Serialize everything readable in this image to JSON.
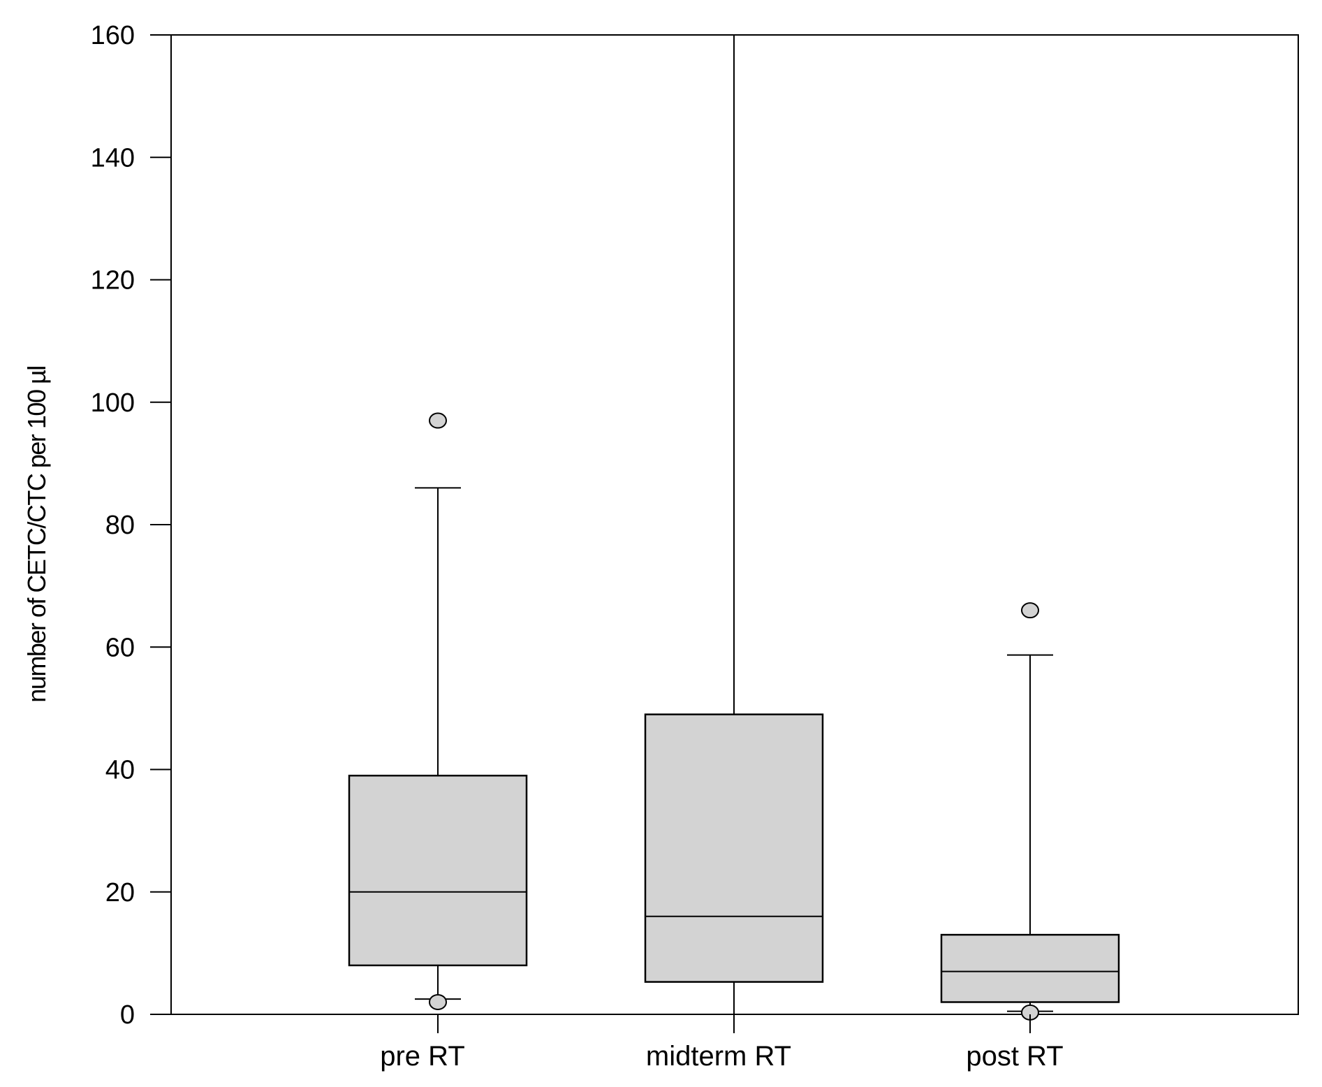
{
  "chart_data": {
    "type": "box",
    "title": "",
    "xlabel": "",
    "ylabel": "number of CETC/CTC per 100 µl",
    "ylim": [
      0,
      160
    ],
    "yticks": [
      0,
      20,
      40,
      60,
      80,
      100,
      120,
      140,
      160
    ],
    "grid": false,
    "legend": "none",
    "categories": [
      "pre RT",
      "midterm RT",
      "post RT"
    ],
    "series": [
      {
        "values": [
          {
            "category": "pre RT",
            "whisker_low": 2.5,
            "q1": 8,
            "median": 20,
            "q3": 39,
            "whisker_high": 86,
            "outliers": [
              2,
              97
            ]
          },
          {
            "category": "midterm RT",
            "whisker_low": 0,
            "q1": 5.3,
            "median": 16,
            "q3": 49,
            "whisker_high": 160,
            "outliers": []
          },
          {
            "category": "post RT",
            "whisker_low": 0.5,
            "q1": 2,
            "median": 7,
            "q3": 13,
            "whisker_high": 58.7,
            "outliers": [
              0.3,
              66
            ]
          }
        ]
      }
    ],
    "colors": {
      "box_fill": "#d3d3d3",
      "outlier_fill": "#d3d3d3",
      "stroke": "#000000",
      "background": "#ffffff"
    }
  }
}
